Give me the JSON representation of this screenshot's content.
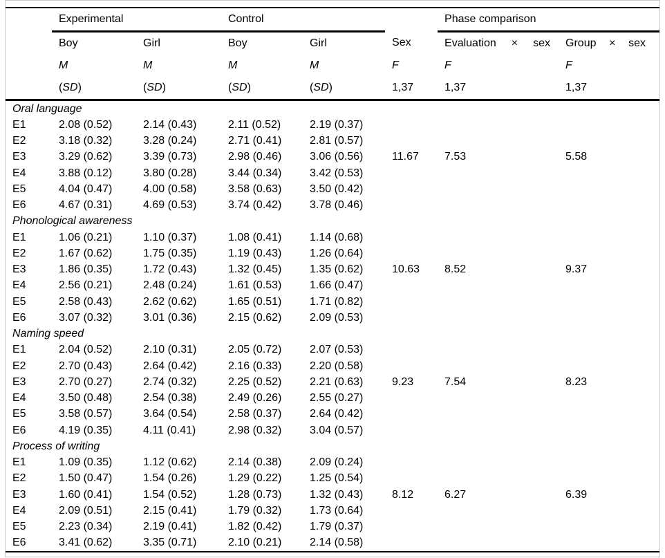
{
  "table": {
    "header": {
      "spanners": {
        "experimental": "Experimental",
        "control": "Control",
        "phase_comparison": "Phase comparison"
      },
      "sub_columns": [
        "Boy",
        "Girl",
        "Boy",
        "Girl"
      ],
      "stats": {
        "m": "M",
        "paren_open": "(",
        "sd": "SD",
        "paren_close": ")"
      },
      "sex": {
        "label": "Sex",
        "f": "F",
        "df": "1,37"
      },
      "evaluation": {
        "factor": "Evaluation",
        "times": "×",
        "by": "sex",
        "f": "F",
        "df": "1,37"
      },
      "group": {
        "factor": "Group",
        "times": "×",
        "by": "sex",
        "f": "F",
        "df": "1,37"
      }
    },
    "sections": [
      {
        "title": "Oral language",
        "rows": [
          {
            "label": "E1",
            "cells": [
              "2.08 (0.52)",
              "2.14 (0.43)",
              "2.11 (0.52)",
              "2.19 (0.37)"
            ]
          },
          {
            "label": "E2",
            "cells": [
              "3.18 (0.32)",
              "3.28 (0.24)",
              "2.71 (0.41)",
              "2.81 (0.57)"
            ]
          },
          {
            "label": "E3",
            "cells": [
              "3.29 (0.62)",
              "3.39 (0.73)",
              "2.98 (0.46)",
              "3.06 (0.56)"
            ]
          },
          {
            "label": "E4",
            "cells": [
              "3.88 (0.12)",
              "3.80 (0.28)",
              "3.44 (0.34)",
              "3.42 (0.53)"
            ]
          },
          {
            "label": "E5",
            "cells": [
              "4.04 (0.47)",
              "4.00 (0.58)",
              "3.58 (0.63)",
              "3.50 (0.42)"
            ]
          },
          {
            "label": "E6",
            "cells": [
              "4.67 (0.31)",
              "4.69 (0.53)",
              "3.74 (0.42)",
              "3.78 (0.46)"
            ]
          }
        ],
        "sex_f": "11.67",
        "evaluation_f": "7.53",
        "group_f": "5.58"
      },
      {
        "title": "Phonological awareness",
        "rows": [
          {
            "label": "E1",
            "cells": [
              "1.06 (0.21)",
              "1.10 (0.37)",
              "1.08 (0.41)",
              "1.14 (0.68)"
            ]
          },
          {
            "label": "E2",
            "cells": [
              "1.67 (0.62)",
              "1.75 (0.35)",
              "1.19 (0.43)",
              "1.26 (0.64)"
            ]
          },
          {
            "label": "E3",
            "cells": [
              "1.86 (0.35)",
              "1.72 (0.43)",
              "1.32 (0.45)",
              "1.35 (0.62)"
            ]
          },
          {
            "label": "E4",
            "cells": [
              "2.56 (0.21)",
              "2.48 (0.24)",
              "1.61 (0.53)",
              "1.66 (0.47)"
            ]
          },
          {
            "label": "E5",
            "cells": [
              "2.58 (0.43)",
              "2.62 (0.62)",
              "1.65 (0.51)",
              "1.71 (0.82)"
            ]
          },
          {
            "label": "E6",
            "cells": [
              "3.07 (0.32)",
              "3.01 (0.36)",
              "2.15 (0.62)",
              "2.09 (0.53)"
            ]
          }
        ],
        "sex_f": "10.63",
        "evaluation_f": "8.52",
        "group_f": "9.37"
      },
      {
        "title": "Naming speed",
        "rows": [
          {
            "label": "E1",
            "cells": [
              "2.04 (0.52)",
              "2.10 (0.31)",
              "2.05 (0.72)",
              "2.07 (0.53)"
            ]
          },
          {
            "label": "E2",
            "cells": [
              "2.70 (0.43)",
              "2.64 (0.42)",
              "2.16 (0.33)",
              "2.20 (0.58)"
            ]
          },
          {
            "label": "E3",
            "cells": [
              "2.70 (0.27)",
              "2.74 (0.32)",
              "2.25 (0.52)",
              "2.21 (0.63)"
            ]
          },
          {
            "label": "E4",
            "cells": [
              "3.50 (0.48)",
              "2.54 (0.38)",
              "2.49 (0.26)",
              "2.55 (0.27)"
            ]
          },
          {
            "label": "E5",
            "cells": [
              "3.58 (0.57)",
              "3.64 (0.54)",
              "2.58 (0.37)",
              "2.64 (0.42)"
            ]
          },
          {
            "label": "E6",
            "cells": [
              "4.19 (0.35)",
              "4.11 (0.41)",
              "2.98 (0.32)",
              "3.04 (0.57)"
            ]
          }
        ],
        "sex_f": "9.23",
        "evaluation_f": "7.54",
        "group_f": "8.23"
      },
      {
        "title": "Process of writing",
        "rows": [
          {
            "label": "E1",
            "cells": [
              "1.09 (0.35)",
              "1.12 (0.62)",
              "2.14 (0.38)",
              "2.09 (0.24)"
            ]
          },
          {
            "label": "E2",
            "cells": [
              "1.50 (0.47)",
              "1.54 (0.26)",
              "1.29 (0.22)",
              "1.25 (0.54)"
            ]
          },
          {
            "label": "E3",
            "cells": [
              "1.60 (0.41)",
              "1.54 (0.52)",
              "1.28 (0.73)",
              "1.32 (0.43)"
            ]
          },
          {
            "label": "E4",
            "cells": [
              "2.09 (0.51)",
              "2.15 (0.41)",
              "1.79 (0.32)",
              "1.73 (0.64)"
            ]
          },
          {
            "label": "E5",
            "cells": [
              "2.23 (0.34)",
              "2.19 (0.41)",
              "1.82 (0.42)",
              "1.79 (0.37)"
            ]
          },
          {
            "label": "E6",
            "cells": [
              "3.41 (0.62)",
              "3.35 (0.71)",
              "2.10 (0.21)",
              "2.14 (0.58)"
            ]
          }
        ],
        "sex_f": "8.12",
        "evaluation_f": "6.27",
        "group_f": "6.39"
      }
    ]
  }
}
